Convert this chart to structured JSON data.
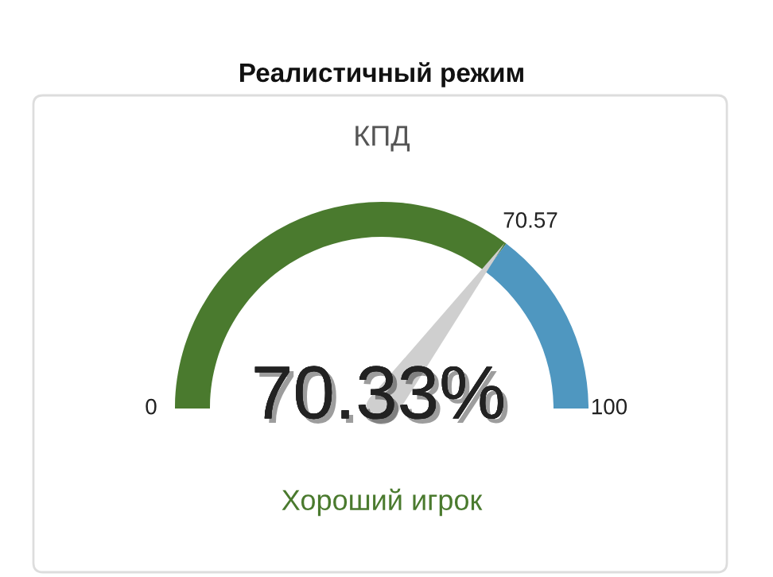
{
  "chart_data": {
    "type": "donut",
    "title": "Реалистичный режим",
    "subtitle": "КПД",
    "categories": [
      "70.57",
      "100"
    ],
    "values": [
      70.57,
      29.43
    ],
    "colors": [
      "#4a7a2e",
      "#4f97c0"
    ],
    "needle": "70.57",
    "annotations": [
      "0",
      "70.33%",
      "Хороший игрок"
    ]
  }
}
